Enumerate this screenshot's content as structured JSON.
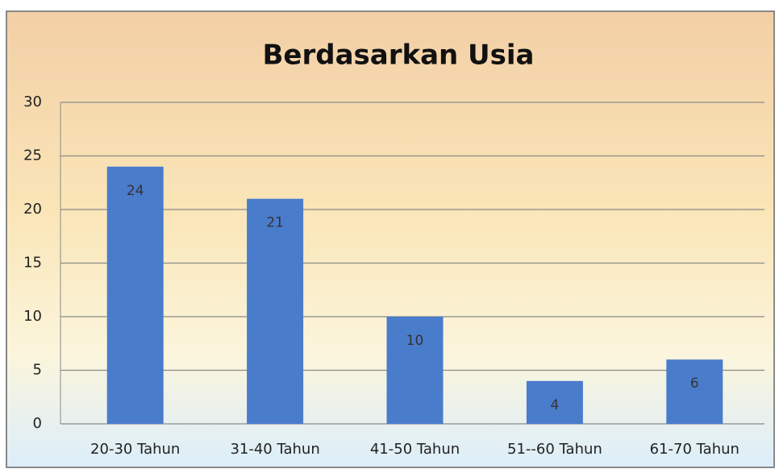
{
  "chart_data": {
    "type": "bar",
    "title": "Berdasarkan Usia",
    "categories": [
      "20-30 Tahun",
      "31-40 Tahun",
      "41-50 Tahun",
      "51--60 Tahun",
      "61-70 Tahun"
    ],
    "values": [
      24,
      21,
      10,
      4,
      6
    ],
    "color": "#4a7ccc",
    "ylim": [
      0,
      30
    ],
    "yticks": [
      0,
      5,
      10,
      15,
      20,
      25,
      30
    ],
    "grid": true
  }
}
